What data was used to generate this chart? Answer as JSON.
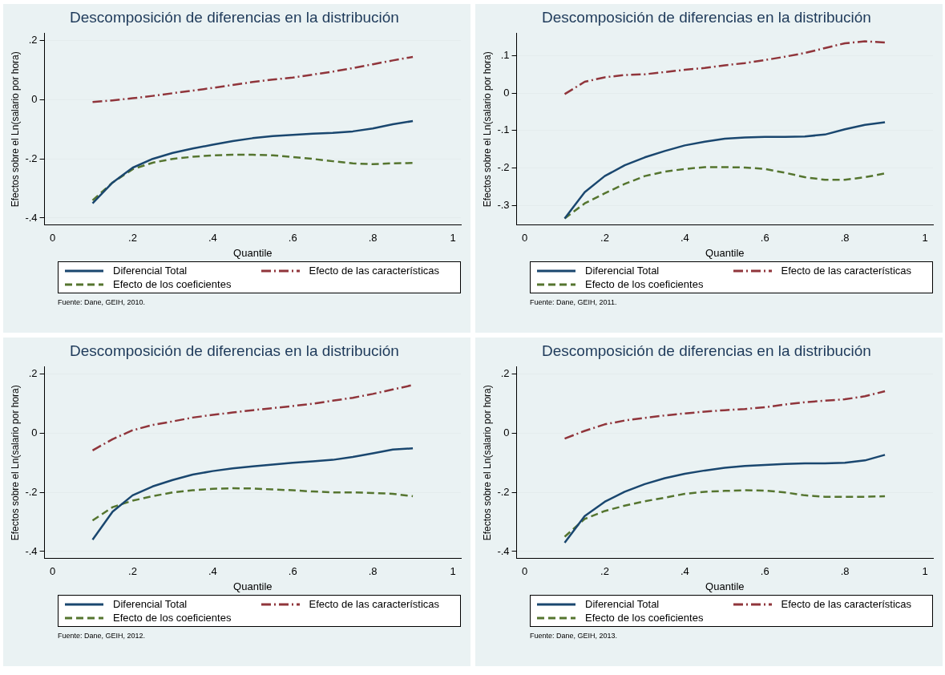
{
  "chart_data": [
    {
      "type": "line",
      "title": "Descomposición de diferencias en la distribución",
      "xlabel": "Quantile",
      "ylabel": "Efectos sobre el Ln(salario por hora)",
      "x": [
        0.1,
        0.15,
        0.2,
        0.25,
        0.3,
        0.35,
        0.4,
        0.45,
        0.5,
        0.55,
        0.6,
        0.65,
        0.7,
        0.75,
        0.8,
        0.85,
        0.9
      ],
      "series": [
        {
          "name": "Diferencial Total",
          "color": "#1a476f",
          "line_style": "solid",
          "values": [
            -0.35,
            -0.28,
            -0.23,
            -0.2,
            -0.18,
            -0.165,
            -0.152,
            -0.14,
            -0.13,
            -0.123,
            -0.119,
            -0.115,
            -0.112,
            -0.107,
            -0.097,
            -0.083,
            -0.072
          ]
        },
        {
          "name": "Efecto de las características",
          "color": "#90353b",
          "line_style": "dashdot",
          "values": [
            -0.008,
            -0.002,
            0.005,
            0.013,
            0.022,
            0.031,
            0.04,
            0.05,
            0.06,
            0.068,
            0.075,
            0.085,
            0.095,
            0.107,
            0.12,
            0.133,
            0.145
          ]
        },
        {
          "name": "Efecto de los coeficientes",
          "color": "#55752f",
          "line_style": "dashed",
          "values": [
            -0.34,
            -0.28,
            -0.235,
            -0.213,
            -0.2,
            -0.193,
            -0.188,
            -0.186,
            -0.186,
            -0.188,
            -0.194,
            -0.2,
            -0.208,
            -0.215,
            -0.218,
            -0.215,
            -0.214
          ]
        }
      ],
      "xlim": [
        -0.02,
        1.02
      ],
      "xticks": [
        {
          "value": 0,
          "label": "0"
        },
        {
          "value": 0.2,
          "label": ".2"
        },
        {
          "value": 0.4,
          "label": ".4"
        },
        {
          "value": 0.6,
          "label": ".6"
        },
        {
          "value": 0.8,
          "label": ".8"
        },
        {
          "value": 1,
          "label": "1"
        }
      ],
      "ylim": [
        -0.424,
        0.224
      ],
      "yticks": [
        {
          "value": -0.4,
          "label": "-.4"
        },
        {
          "value": -0.2,
          "label": "-.2"
        },
        {
          "value": 0,
          "label": "0"
        },
        {
          "value": 0.2,
          "label": ".2"
        }
      ],
      "grid": "y",
      "legend": "bottom",
      "annotations": [
        "Fuente: Dane, GEIH, 2010."
      ]
    },
    {
      "type": "line",
      "title": "Descomposición de diferencias en la distribución",
      "xlabel": "Quantile",
      "ylabel": "Efectos sobre el Ln(salario por hora)",
      "x": [
        0.1,
        0.15,
        0.2,
        0.25,
        0.3,
        0.35,
        0.4,
        0.45,
        0.5,
        0.55,
        0.6,
        0.65,
        0.7,
        0.75,
        0.8,
        0.85,
        0.9
      ],
      "series": [
        {
          "name": "Diferencial Total",
          "color": "#1a476f",
          "line_style": "solid",
          "values": [
            -0.335,
            -0.265,
            -0.222,
            -0.193,
            -0.172,
            -0.155,
            -0.14,
            -0.13,
            -0.122,
            -0.119,
            -0.117,
            -0.117,
            -0.116,
            -0.111,
            -0.097,
            -0.085,
            -0.078
          ]
        },
        {
          "name": "Efecto de las características",
          "color": "#90353b",
          "line_style": "dashdot",
          "values": [
            -0.003,
            0.03,
            0.042,
            0.048,
            0.05,
            0.056,
            0.062,
            0.067,
            0.074,
            0.08,
            0.088,
            0.097,
            0.107,
            0.12,
            0.133,
            0.138,
            0.135
          ]
        },
        {
          "name": "Efecto de los coeficientes",
          "color": "#55752f",
          "line_style": "dashed",
          "values": [
            -0.335,
            -0.295,
            -0.268,
            -0.243,
            -0.222,
            -0.21,
            -0.203,
            -0.198,
            -0.198,
            -0.199,
            -0.203,
            -0.213,
            -0.225,
            -0.232,
            -0.232,
            -0.225,
            -0.215
          ]
        }
      ],
      "xlim": [
        -0.02,
        1.02
      ],
      "xticks": [
        {
          "value": 0,
          "label": "0"
        },
        {
          "value": 0.2,
          "label": ".2"
        },
        {
          "value": 0.4,
          "label": ".4"
        },
        {
          "value": 0.6,
          "label": ".6"
        },
        {
          "value": 0.8,
          "label": ".8"
        },
        {
          "value": 1,
          "label": "1"
        }
      ],
      "ylim": [
        -0.353,
        0.159
      ],
      "yticks": [
        {
          "value": -0.3,
          "label": "-.3"
        },
        {
          "value": -0.2,
          "label": "-.2"
        },
        {
          "value": -0.1,
          "label": "-.1"
        },
        {
          "value": 0,
          "label": "0"
        },
        {
          "value": 0.1,
          "label": ".1"
        }
      ],
      "grid": "y",
      "legend": "bottom",
      "annotations": [
        "Fuente: Dane, GEIH, 2011."
      ]
    },
    {
      "type": "line",
      "title": "Descomposición de diferencias en la distribución",
      "xlabel": "Quantile",
      "ylabel": "Efectos sobre el Ln(salario por hora)",
      "x": [
        0.1,
        0.15,
        0.2,
        0.25,
        0.3,
        0.35,
        0.4,
        0.45,
        0.5,
        0.55,
        0.6,
        0.65,
        0.7,
        0.75,
        0.8,
        0.85,
        0.9
      ],
      "series": [
        {
          "name": "Diferencial Total",
          "color": "#1a476f",
          "line_style": "solid",
          "values": [
            -0.36,
            -0.265,
            -0.21,
            -0.18,
            -0.158,
            -0.14,
            -0.128,
            -0.119,
            -0.112,
            -0.106,
            -0.1,
            -0.095,
            -0.09,
            -0.08,
            -0.068,
            -0.055,
            -0.051
          ]
        },
        {
          "name": "Efecto de las características",
          "color": "#90353b",
          "line_style": "dashdot",
          "values": [
            -0.058,
            -0.02,
            0.01,
            0.028,
            0.04,
            0.053,
            0.062,
            0.07,
            0.078,
            0.085,
            0.092,
            0.1,
            0.11,
            0.12,
            0.133,
            0.148,
            0.163
          ]
        },
        {
          "name": "Efecto de los coeficientes",
          "color": "#55752f",
          "line_style": "dashed",
          "values": [
            -0.295,
            -0.25,
            -0.228,
            -0.213,
            -0.2,
            -0.193,
            -0.188,
            -0.186,
            -0.187,
            -0.19,
            -0.193,
            -0.197,
            -0.2,
            -0.2,
            -0.202,
            -0.205,
            -0.213
          ]
        }
      ],
      "xlim": [
        -0.02,
        1.02
      ],
      "xticks": [
        {
          "value": 0,
          "label": "0"
        },
        {
          "value": 0.2,
          "label": ".2"
        },
        {
          "value": 0.4,
          "label": ".4"
        },
        {
          "value": 0.6,
          "label": ".6"
        },
        {
          "value": 0.8,
          "label": ".8"
        },
        {
          "value": 1,
          "label": "1"
        }
      ],
      "ylim": [
        -0.424,
        0.224
      ],
      "yticks": [
        {
          "value": -0.4,
          "label": "-.4"
        },
        {
          "value": -0.2,
          "label": "-.2"
        },
        {
          "value": 0,
          "label": "0"
        },
        {
          "value": 0.2,
          "label": ".2"
        }
      ],
      "grid": "y",
      "legend": "bottom",
      "annotations": [
        "Fuente: Dane, GEIH, 2012."
      ]
    },
    {
      "type": "line",
      "title": "Descomposición de diferencias en la distribución",
      "xlabel": "Quantile",
      "ylabel": "Efectos sobre el Ln(salario por hora)",
      "x": [
        0.1,
        0.15,
        0.2,
        0.25,
        0.3,
        0.35,
        0.4,
        0.45,
        0.5,
        0.55,
        0.6,
        0.65,
        0.7,
        0.75,
        0.8,
        0.85,
        0.9
      ],
      "series": [
        {
          "name": "Diferencial Total",
          "color": "#1a476f",
          "line_style": "solid",
          "values": [
            -0.37,
            -0.28,
            -0.232,
            -0.198,
            -0.172,
            -0.152,
            -0.137,
            -0.126,
            -0.117,
            -0.111,
            -0.107,
            -0.104,
            -0.102,
            -0.102,
            -0.1,
            -0.092,
            -0.073
          ]
        },
        {
          "name": "Efecto de las características",
          "color": "#90353b",
          "line_style": "dashdot",
          "values": [
            -0.018,
            0.008,
            0.03,
            0.043,
            0.052,
            0.06,
            0.067,
            0.073,
            0.078,
            0.082,
            0.088,
            0.097,
            0.105,
            0.11,
            0.115,
            0.125,
            0.142
          ]
        },
        {
          "name": "Efecto de los coeficientes",
          "color": "#55752f",
          "line_style": "dashed",
          "values": [
            -0.35,
            -0.29,
            -0.263,
            -0.245,
            -0.23,
            -0.218,
            -0.205,
            -0.198,
            -0.195,
            -0.193,
            -0.194,
            -0.2,
            -0.21,
            -0.215,
            -0.215,
            -0.215,
            -0.213
          ]
        }
      ],
      "xlim": [
        -0.02,
        1.02
      ],
      "xticks": [
        {
          "value": 0,
          "label": "0"
        },
        {
          "value": 0.2,
          "label": ".2"
        },
        {
          "value": 0.4,
          "label": ".4"
        },
        {
          "value": 0.6,
          "label": ".6"
        },
        {
          "value": 0.8,
          "label": ".8"
        },
        {
          "value": 1,
          "label": "1"
        }
      ],
      "ylim": [
        -0.424,
        0.224
      ],
      "yticks": [
        {
          "value": -0.4,
          "label": "-.4"
        },
        {
          "value": -0.2,
          "label": "-.2"
        },
        {
          "value": 0,
          "label": "0"
        },
        {
          "value": 0.2,
          "label": ".2"
        }
      ],
      "grid": "y",
      "legend": "bottom",
      "annotations": [
        "Fuente: Dane, GEIH, 2013."
      ]
    }
  ]
}
